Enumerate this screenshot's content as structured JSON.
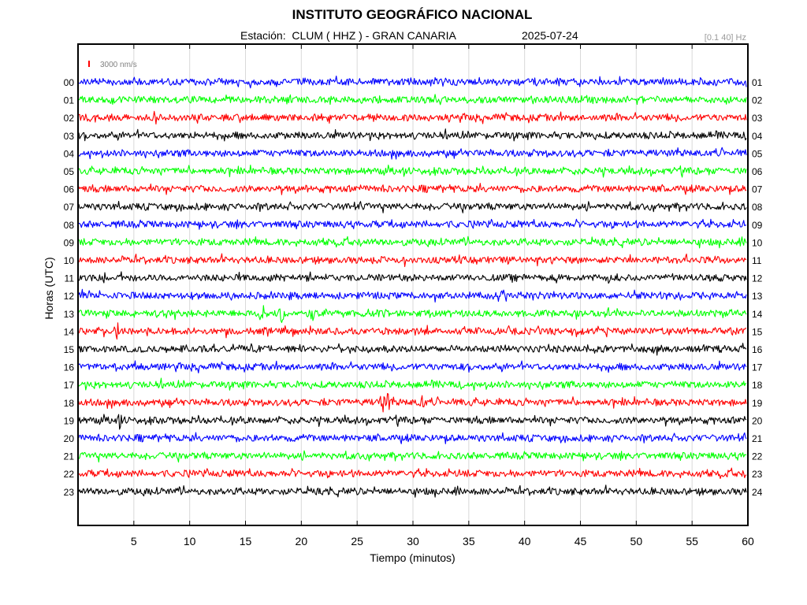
{
  "header": {
    "title": "INSTITUTO GEOGRÁFICO NACIONAL",
    "station_line": "Estación:  CLUM ( HHZ ) - GRAN CANARIA",
    "date": "2025-07-24",
    "filter": "[0.1 40] Hz"
  },
  "colors": {
    "trace_cycle": [
      "#0000ff",
      "#00ff00",
      "#ff0000",
      "#000000"
    ],
    "grid": "#d9d9d9",
    "frame": "#000000"
  },
  "chart_data": {
    "type": "line",
    "title": "INSTITUTO GEOGRÁFICO NACIONAL",
    "xlabel": "Tiempo (minutos)",
    "ylabel": "Horas (UTC)",
    "xlim": [
      0,
      60
    ],
    "xticks": [
      5,
      10,
      15,
      20,
      25,
      30,
      35,
      40,
      45,
      50,
      55,
      60
    ],
    "grid": true,
    "scale_label": "3000 nm/s",
    "left_hour_labels": [
      "00",
      "01",
      "02",
      "03",
      "04",
      "05",
      "06",
      "07",
      "08",
      "09",
      "10",
      "11",
      "12",
      "13",
      "14",
      "15",
      "16",
      "17",
      "18",
      "19",
      "20",
      "21",
      "22",
      "23"
    ],
    "right_hour_labels": [
      "01",
      "02",
      "03",
      "04",
      "05",
      "06",
      "07",
      "08",
      "09",
      "10",
      "11",
      "12",
      "13",
      "14",
      "15",
      "16",
      "17",
      "18",
      "19",
      "20",
      "21",
      "22",
      "23",
      "24"
    ],
    "series": [
      {
        "hour": 0,
        "color": "#0000ff"
      },
      {
        "hour": 1,
        "color": "#00ff00"
      },
      {
        "hour": 2,
        "color": "#ff0000"
      },
      {
        "hour": 3,
        "color": "#000000"
      },
      {
        "hour": 4,
        "color": "#0000ff"
      },
      {
        "hour": 5,
        "color": "#00ff00"
      },
      {
        "hour": 6,
        "color": "#ff0000"
      },
      {
        "hour": 7,
        "color": "#000000"
      },
      {
        "hour": 8,
        "color": "#0000ff"
      },
      {
        "hour": 9,
        "color": "#00ff00"
      },
      {
        "hour": 10,
        "color": "#ff0000"
      },
      {
        "hour": 11,
        "color": "#000000"
      },
      {
        "hour": 12,
        "color": "#0000ff"
      },
      {
        "hour": 13,
        "color": "#00ff00",
        "events": [
          {
            "minute": 16.5
          },
          {
            "minute": 18.2
          },
          {
            "minute": 21.0
          }
        ]
      },
      {
        "hour": 14,
        "color": "#ff0000",
        "events": [
          {
            "minute": 3.5
          }
        ]
      },
      {
        "hour": 15,
        "color": "#000000"
      },
      {
        "hour": 16,
        "color": "#0000ff"
      },
      {
        "hour": 17,
        "color": "#00ff00"
      },
      {
        "hour": 18,
        "color": "#ff0000",
        "events": [
          {
            "minute": 27.3
          },
          {
            "minute": 27.8
          },
          {
            "minute": 30.8
          }
        ]
      },
      {
        "hour": 19,
        "color": "#000000",
        "events": [
          {
            "minute": 3.7
          }
        ]
      },
      {
        "hour": 20,
        "color": "#0000ff"
      },
      {
        "hour": 21,
        "color": "#00ff00"
      },
      {
        "hour": 22,
        "color": "#ff0000"
      },
      {
        "hour": 23,
        "color": "#000000"
      }
    ]
  }
}
